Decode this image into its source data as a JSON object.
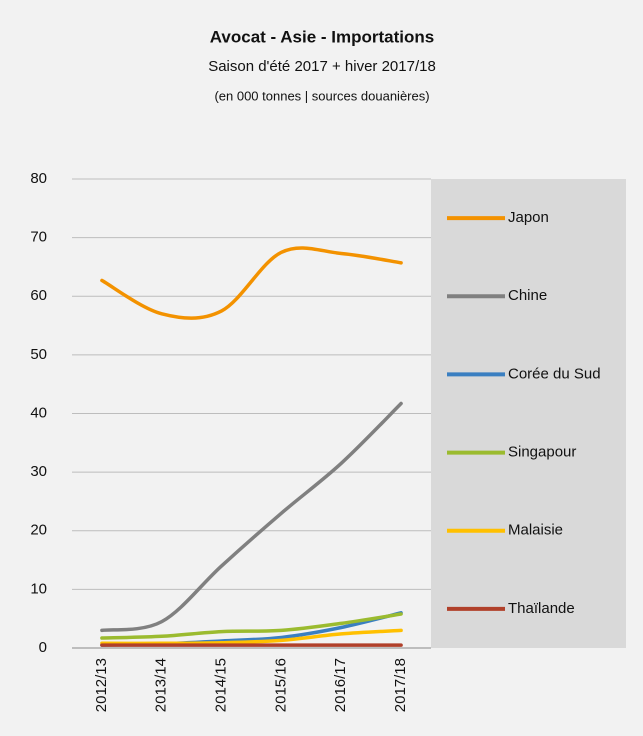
{
  "chart_data": {
    "type": "line",
    "title": "Avocat - Asie - Importations",
    "subtitle": "Saison d'été 2017 + hiver 2017/18",
    "note": "(en 000 tonnes | sources douanières)",
    "categories": [
      "2012/13",
      "2013/14",
      "2014/15",
      "2015/16",
      "2016/17",
      "2017/18"
    ],
    "series": [
      {
        "name": "Japon",
        "color": "#f39200",
        "values": [
          62.7,
          57,
          57.5,
          67.5,
          67.3,
          65.7
        ]
      },
      {
        "name": "Chine",
        "color": "#808080",
        "values": [
          3,
          4.5,
          14,
          23,
          31.5,
          41.7
        ]
      },
      {
        "name": "Corée du Sud",
        "color": "#3a7fc1",
        "values": [
          0.5,
          0.7,
          1.2,
          1.8,
          3.5,
          6
        ]
      },
      {
        "name": "Singapour",
        "color": "#9bbb2f",
        "values": [
          1.7,
          2,
          2.8,
          3,
          4.2,
          5.8
        ]
      },
      {
        "name": "Malaisie",
        "color": "#ffc000",
        "values": [
          0.8,
          0.8,
          0.9,
          1.3,
          2.4,
          3
        ]
      },
      {
        "name": "Thaïlande",
        "color": "#b0402a",
        "values": [
          0.5,
          0.5,
          0.5,
          0.5,
          0.5,
          0.5
        ]
      }
    ],
    "ylim": [
      0,
      80
    ],
    "yticks": [
      0,
      10,
      20,
      30,
      40,
      50,
      60,
      70,
      80
    ],
    "grid": true,
    "legend": "right"
  }
}
